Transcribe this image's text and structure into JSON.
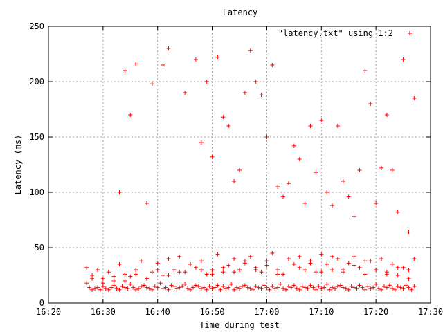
{
  "chart_data": {
    "type": "scatter",
    "title": "Latency",
    "xlabel": "Time during test",
    "ylabel": "Latency (ms)",
    "legend": {
      "label": "\"latency.txt\" using 1:2",
      "position": "top-right",
      "marker": "plus"
    },
    "grid": true,
    "xlim": [
      "16:20",
      "17:30"
    ],
    "ylim": [
      0,
      250
    ],
    "xticks": [
      "16:20",
      "16:30",
      "16:40",
      "16:50",
      "17:00",
      "17:10",
      "17:20",
      "17:30"
    ],
    "yticks": [
      0,
      50,
      100,
      150,
      200,
      250
    ],
    "colors": {
      "series": "#ff0000",
      "grid": "#a0a0a0"
    },
    "series": [
      {
        "marker": "plus",
        "color": "#ff0000",
        "x": [
          "16:27:00",
          "16:27:30",
          "16:28:00",
          "16:28:30",
          "16:29:00",
          "16:29:30",
          "16:30:00",
          "16:30:30",
          "16:31:00",
          "16:31:30",
          "16:32:00",
          "16:32:30",
          "16:33:00",
          "16:33:30",
          "16:34:00",
          "16:34:30",
          "16:35:00",
          "16:35:30",
          "16:36:00",
          "16:36:30",
          "16:37:00",
          "16:37:30",
          "16:38:00",
          "16:38:30",
          "16:39:00",
          "16:39:30",
          "16:40:00",
          "16:40:30",
          "16:41:00",
          "16:41:30",
          "16:42:00",
          "16:42:30",
          "16:43:00",
          "16:43:30",
          "16:44:00",
          "16:44:30",
          "16:45:00",
          "16:45:30",
          "16:46:00",
          "16:46:30",
          "16:47:00",
          "16:47:30",
          "16:48:00",
          "16:48:30",
          "16:49:00",
          "16:49:30",
          "16:50:00",
          "16:50:30",
          "16:51:00",
          "16:51:30",
          "16:52:00",
          "16:52:30",
          "16:53:00",
          "16:53:30",
          "16:54:00",
          "16:54:30",
          "16:55:00",
          "16:55:30",
          "16:56:00",
          "16:56:30",
          "16:57:00",
          "16:57:30",
          "16:58:00",
          "16:58:30",
          "16:59:00",
          "16:59:30",
          "17:00:00",
          "17:00:30",
          "17:01:00",
          "17:01:30",
          "17:02:00",
          "17:02:30",
          "17:03:00",
          "17:03:30",
          "17:04:00",
          "17:04:30",
          "17:05:00",
          "17:05:30",
          "17:06:00",
          "17:06:30",
          "17:07:00",
          "17:07:30",
          "17:08:00",
          "17:08:30",
          "17:09:00",
          "17:09:30",
          "17:10:00",
          "17:10:30",
          "17:11:00",
          "17:11:30",
          "17:12:00",
          "17:12:30",
          "17:13:00",
          "17:13:30",
          "17:14:00",
          "17:14:30",
          "17:15:00",
          "17:15:30",
          "17:16:00",
          "17:16:30",
          "17:17:00",
          "17:17:30",
          "17:18:00",
          "17:18:30",
          "17:19:00",
          "17:19:30",
          "17:20:00",
          "17:20:30",
          "17:21:00",
          "17:21:30",
          "17:22:00",
          "17:22:30",
          "17:23:00",
          "17:23:30",
          "17:24:00",
          "17:24:30",
          "17:25:00",
          "17:25:30",
          "17:26:00",
          "17:26:30",
          "17:27:00",
          "16:27:00",
          "16:28:00",
          "16:29:00",
          "16:30:00",
          "16:31:00",
          "16:32:00",
          "16:33:00",
          "16:34:00",
          "16:35:00",
          "16:36:00",
          "16:37:00",
          "16:38:00",
          "16:39:00",
          "16:40:00",
          "16:41:00",
          "16:42:00",
          "16:43:00",
          "16:44:00",
          "16:45:00",
          "16:46:00",
          "16:47:00",
          "16:48:00",
          "16:49:00",
          "16:50:00",
          "16:51:00",
          "16:52:00",
          "16:53:00",
          "16:54:00",
          "16:55:00",
          "16:56:00",
          "16:57:00",
          "16:58:00",
          "16:59:00",
          "17:00:00",
          "17:01:00",
          "17:02:00",
          "17:03:00",
          "17:04:00",
          "17:05:00",
          "17:06:00",
          "17:07:00",
          "17:08:00",
          "17:09:00",
          "17:10:00",
          "17:11:00",
          "17:12:00",
          "17:13:00",
          "17:14:00",
          "17:15:00",
          "17:16:00",
          "17:17:00",
          "17:18:00",
          "17:19:00",
          "17:20:00",
          "17:21:00",
          "17:22:00",
          "17:23:00",
          "17:24:00",
          "17:25:00",
          "17:26:00",
          "17:27:00",
          "16:28:00",
          "16:30:00",
          "16:32:00",
          "16:34:00",
          "16:36:00",
          "16:38:00",
          "16:40:00",
          "16:42:00",
          "16:44:00",
          "16:46:00",
          "16:48:00",
          "16:50:00",
          "16:52:00",
          "16:54:00",
          "16:56:00",
          "16:58:00",
          "17:00:00",
          "17:02:00",
          "17:04:00",
          "17:06:00",
          "17:08:00",
          "17:10:00",
          "17:12:00",
          "17:14:00",
          "17:16:00",
          "17:18:00",
          "17:20:00",
          "17:22:00",
          "17:24:00",
          "17:26:00",
          "16:33:00",
          "16:34:00",
          "16:35:00",
          "16:36:00",
          "16:38:00",
          "16:39:00",
          "16:41:00",
          "16:42:00",
          "16:45:00",
          "16:47:00",
          "16:48:00",
          "16:49:00",
          "16:50:00",
          "16:51:00",
          "16:52:00",
          "16:53:00",
          "16:54:00",
          "16:55:00",
          "16:56:00",
          "16:57:00",
          "16:58:00",
          "16:59:00",
          "17:00:00",
          "17:01:00",
          "17:02:00",
          "17:03:00",
          "17:04:00",
          "17:05:00",
          "17:06:00",
          "17:07:00",
          "17:08:00",
          "17:09:00",
          "17:10:00",
          "17:11:00",
          "17:12:00",
          "17:13:00",
          "17:14:00",
          "17:15:00",
          "17:16:00",
          "17:17:00",
          "17:18:00",
          "17:19:00",
          "17:20:00",
          "17:21:00",
          "17:22:00",
          "17:23:00",
          "17:24:00",
          "17:25:00",
          "17:26:00",
          "17:27:00"
        ],
        "y": [
          18,
          14,
          12,
          13,
          14,
          12,
          15,
          13,
          12,
          14,
          16,
          13,
          12,
          15,
          14,
          13,
          17,
          14,
          12,
          13,
          15,
          16,
          14,
          13,
          12,
          15,
          14,
          18,
          13,
          14,
          12,
          16,
          15,
          13,
          14,
          15,
          17,
          13,
          12,
          14,
          16,
          15,
          13,
          14,
          12,
          15,
          13,
          14,
          16,
          12,
          15,
          13,
          14,
          17,
          12,
          14,
          13,
          15,
          16,
          14,
          13,
          12,
          15,
          14,
          13,
          16,
          14,
          12,
          15,
          13,
          14,
          17,
          13,
          12,
          15,
          14,
          16,
          13,
          12,
          15,
          14,
          13,
          16,
          14,
          12,
          15,
          13,
          14,
          17,
          12,
          14,
          13,
          15,
          16,
          14,
          13,
          12,
          15,
          14,
          13,
          16,
          14,
          12,
          15,
          13,
          14,
          17,
          13,
          12,
          15,
          14,
          16,
          13,
          12,
          15,
          14,
          13,
          16,
          14,
          12,
          15,
          32,
          25,
          30,
          22,
          28,
          20,
          35,
          26,
          24,
          30,
          38,
          22,
          28,
          36,
          25,
          40,
          30,
          42,
          28,
          35,
          32,
          38,
          26,
          30,
          44,
          28,
          34,
          40,
          30,
          36,
          42,
          32,
          28,
          38,
          45,
          30,
          26,
          40,
          35,
          42,
          30,
          38,
          28,
          44,
          35,
          30,
          40,
          28,
          36,
          42,
          32,
          26,
          38,
          30,
          40,
          28,
          35,
          25,
          32,
          30,
          40,
          22,
          18,
          24,
          20,
          26,
          22,
          30,
          25,
          28,
          35,
          30,
          26,
          32,
          28,
          38,
          30,
          34,
          26,
          40,
          32,
          36,
          28,
          42,
          30,
          34,
          38,
          30,
          26,
          32,
          22,
          100,
          210,
          170,
          216,
          90,
          198,
          215,
          230,
          190,
          220,
          145,
          200,
          132,
          222,
          168,
          160,
          110,
          120,
          190,
          228,
          200,
          188,
          150,
          215,
          105,
          96,
          108,
          142,
          130,
          90,
          160,
          118,
          165,
          100,
          88,
          160,
          110,
          96,
          78,
          120,
          210,
          180,
          90,
          122,
          170,
          120,
          82,
          220,
          64,
          185
        ]
      }
    ]
  }
}
